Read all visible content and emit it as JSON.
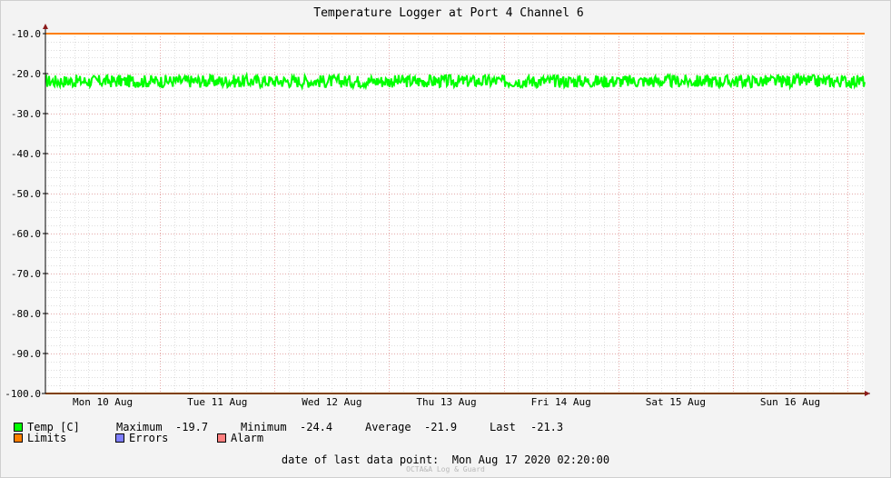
{
  "chart_data": {
    "type": "line",
    "title": "Temperature Logger at Port 4 Channel 6",
    "ylim": [
      -100,
      -10
    ],
    "yticks": [
      -10,
      -20,
      -30,
      -40,
      -50,
      -60,
      -70,
      -80,
      -90,
      -100
    ],
    "ytick_labels": [
      "-10.0",
      "-20.0",
      "-30.0",
      "-40.0",
      "-50.0",
      "-60.0",
      "-70.0",
      "-80.0",
      "-90.0",
      "-100.0"
    ],
    "x_range_days": [
      0,
      7.15
    ],
    "x_day_labels": [
      "Mon 10 Aug",
      "Tue 11 Aug",
      "Wed 12 Aug",
      "Thu 13 Aug",
      "Fri 14 Aug",
      "Sat 15 Aug",
      "Sun 16 Aug"
    ],
    "grid": true,
    "series": [
      {
        "name": "Temp [C]",
        "color": "#00ff00",
        "center": -21.9,
        "max": -19.7,
        "min": -24.4
      },
      {
        "name": "Limits",
        "color": "#ff7f00",
        "values": [
          -10,
          -100
        ]
      }
    ]
  },
  "legend": {
    "temp_label": "Temp [C]",
    "max_label": "Maximum",
    "max_value": "-19.7",
    "min_label": "Minimum",
    "min_value": "-24.4",
    "avg_label": "Average",
    "avg_value": "-21.9",
    "last_label": "Last",
    "last_value": "-21.3",
    "limits_label": "Limits",
    "errors_label": "Errors",
    "alarm_label": "Alarm",
    "colors": {
      "temp": "#00ff00",
      "limits": "#ff7f00",
      "errors": "#7f7fff",
      "alarm": "#ff7f7f"
    }
  },
  "footer": {
    "last_point_label": "date of last data point:",
    "last_point_value": "Mon Aug 17 2020 02:20:00",
    "watermark": "OCTA&A Log & Guard"
  }
}
